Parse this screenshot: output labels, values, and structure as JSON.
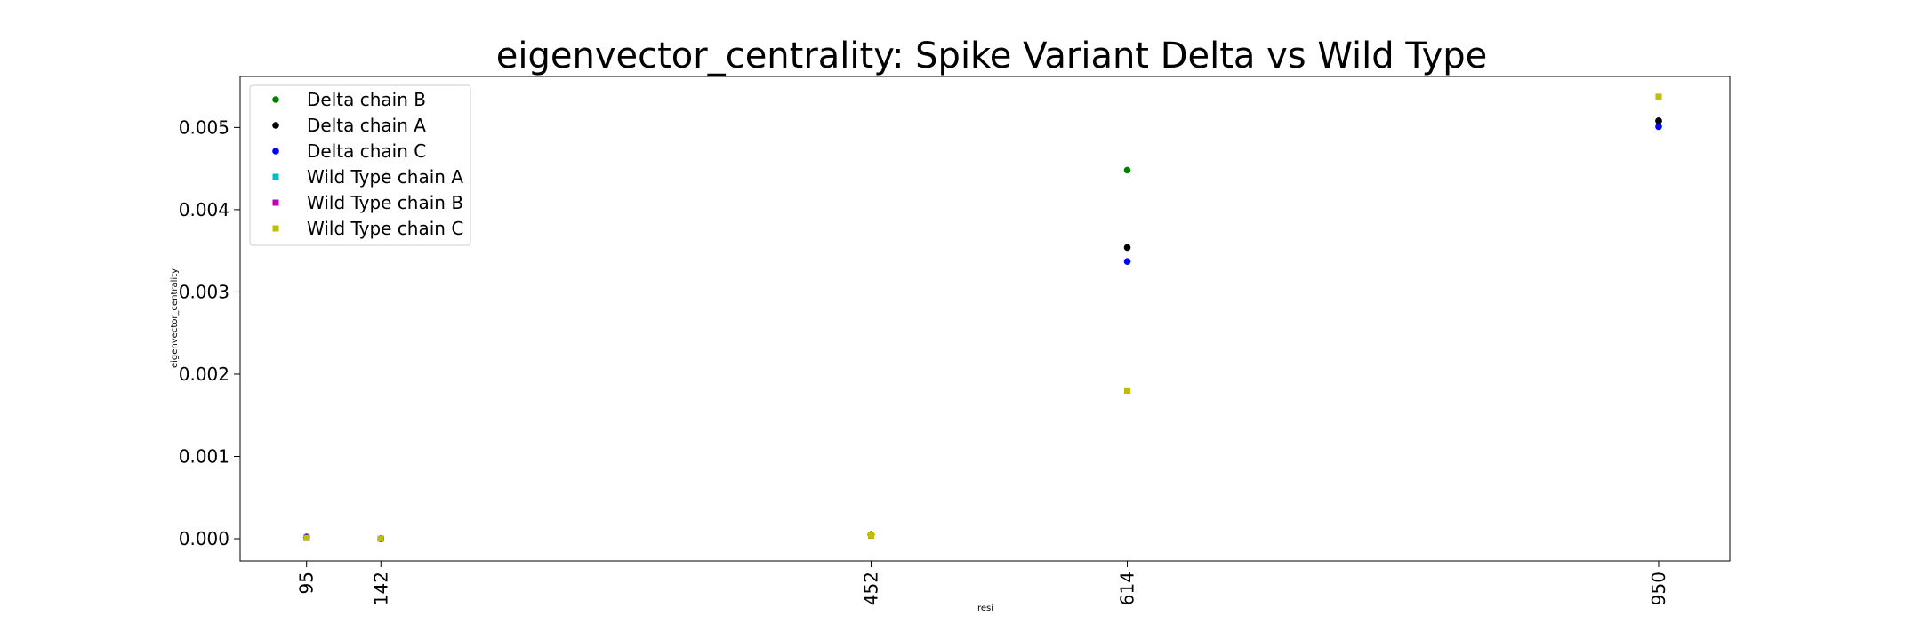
{
  "chart_data": {
    "type": "scatter",
    "title": "eigenvector_centrality: Spike Variant Delta vs Wild Type",
    "xlabel": "resi",
    "ylabel": "eigenvector_centrality",
    "x_ticks": [
      95,
      142,
      452,
      614,
      950
    ],
    "y_ticks": [
      "0.000",
      "0.001",
      "0.002",
      "0.003",
      "0.004",
      "0.005"
    ],
    "xlim": [
      53,
      995
    ],
    "ylim": [
      -0.00027,
      0.00562
    ],
    "grid": false,
    "legend_position": "top-left",
    "series": [
      {
        "name": "Delta chain B",
        "color": "#008000",
        "marker": "circle",
        "x": [
          95,
          142,
          452,
          614,
          950
        ],
        "y": [
          2e-05,
          0.0,
          5e-05,
          0.00448,
          0.00508
        ]
      },
      {
        "name": "Delta chain A",
        "color": "#000000",
        "marker": "circle",
        "x": [
          95,
          142,
          452,
          614,
          950
        ],
        "y": [
          2e-05,
          0.0,
          5e-05,
          0.00354,
          0.00508
        ]
      },
      {
        "name": "Delta chain C",
        "color": "#0000ff",
        "marker": "circle",
        "x": [
          95,
          142,
          452,
          614,
          950
        ],
        "y": [
          2e-05,
          0.0,
          5e-05,
          0.00337,
          0.00501
        ]
      },
      {
        "name": "Wild Type chain A",
        "color": "#00bfbf",
        "marker": "square",
        "x": [
          95,
          142,
          452,
          614,
          950
        ],
        "y": [
          1e-05,
          0.0,
          4e-05,
          0.0018,
          0.00537
        ]
      },
      {
        "name": "Wild Type chain B",
        "color": "#bf00bf",
        "marker": "square",
        "x": [
          95,
          142,
          452,
          614,
          950
        ],
        "y": [
          1e-05,
          0.0,
          4e-05,
          0.0018,
          0.00537
        ]
      },
      {
        "name": "Wild Type chain C",
        "color": "#bfbf00",
        "marker": "square",
        "x": [
          95,
          142,
          452,
          614,
          950
        ],
        "y": [
          1e-05,
          0.0,
          4e-05,
          0.0018,
          0.00537
        ]
      }
    ]
  }
}
